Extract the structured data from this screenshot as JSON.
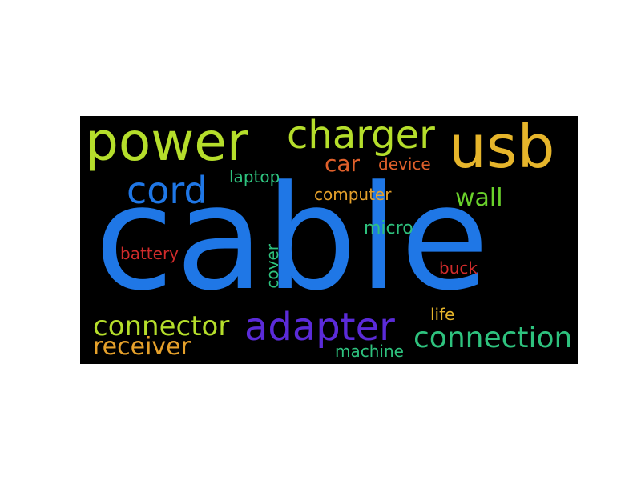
{
  "word_cloud": {
    "background": "#000000",
    "words": [
      {
        "id": "cable",
        "text": "cable",
        "color": "#1f77e6"
      },
      {
        "id": "power",
        "text": "power",
        "color": "#b5de2b"
      },
      {
        "id": "usb",
        "text": "usb",
        "color": "#e6b52b"
      },
      {
        "id": "charger",
        "text": "charger",
        "color": "#b5de2b"
      },
      {
        "id": "cord",
        "text": "cord",
        "color": "#1f77e6"
      },
      {
        "id": "car",
        "text": "car",
        "color": "#e0602b"
      },
      {
        "id": "device",
        "text": "device",
        "color": "#e0602b"
      },
      {
        "id": "laptop",
        "text": "laptop",
        "color": "#2ec27e"
      },
      {
        "id": "computer",
        "text": "computer",
        "color": "#e6a12b"
      },
      {
        "id": "wall",
        "text": "wall",
        "color": "#6ad22b"
      },
      {
        "id": "micro",
        "text": "micro",
        "color": "#2ec27e"
      },
      {
        "id": "battery",
        "text": "battery",
        "color": "#d12b2b"
      },
      {
        "id": "cover",
        "text": "cover",
        "color": "#2ec27e"
      },
      {
        "id": "buck",
        "text": "buck",
        "color": "#d12b2b"
      },
      {
        "id": "life",
        "text": "life",
        "color": "#e6b52b"
      },
      {
        "id": "connector",
        "text": "connector",
        "color": "#b5de2b"
      },
      {
        "id": "adapter",
        "text": "adapter",
        "color": "#5b2bd9"
      },
      {
        "id": "receiver",
        "text": "receiver",
        "color": "#e6a12b"
      },
      {
        "id": "connection",
        "text": "connection",
        "color": "#2ec27e"
      },
      {
        "id": "machine",
        "text": "machine",
        "color": "#2ec27e"
      }
    ]
  }
}
